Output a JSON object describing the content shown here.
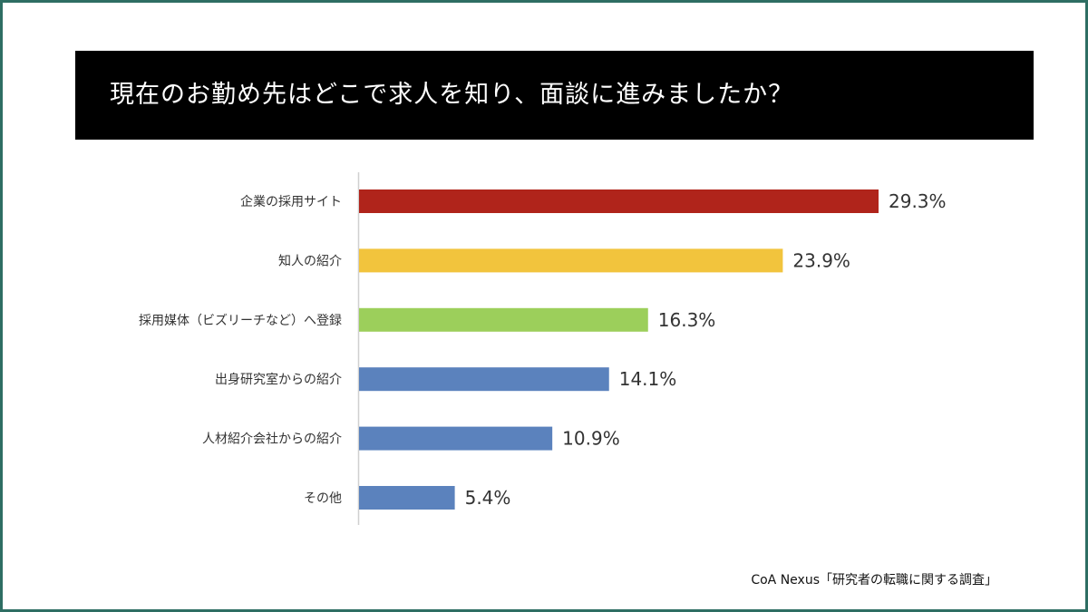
{
  "title": "現在のお勤め先はどこで求人を知り、面談に進みましたか？",
  "source": "CoA Nexus「研究者の転職に関する調査」",
  "chart_data": {
    "type": "bar",
    "orientation": "horizontal",
    "categories": [
      "企業の採用サイト",
      "知人の紹介",
      "採用媒体（ビズリーチなど）へ登録",
      "出身研究室からの紹介",
      "人材紹介会社からの紹介",
      "その他"
    ],
    "values": [
      29.3,
      23.9,
      16.3,
      14.1,
      10.9,
      5.4
    ],
    "value_labels": [
      "29.3%",
      "23.9%",
      "16.3%",
      "14.1%",
      "10.9%",
      "5.4%"
    ],
    "colors": [
      "#b0241b",
      "#f2c43d",
      "#9ccf5b",
      "#5b82bd",
      "#5b82bd",
      "#5b82bd"
    ],
    "xlim": [
      0,
      30
    ],
    "grid": false,
    "legend": "none"
  }
}
